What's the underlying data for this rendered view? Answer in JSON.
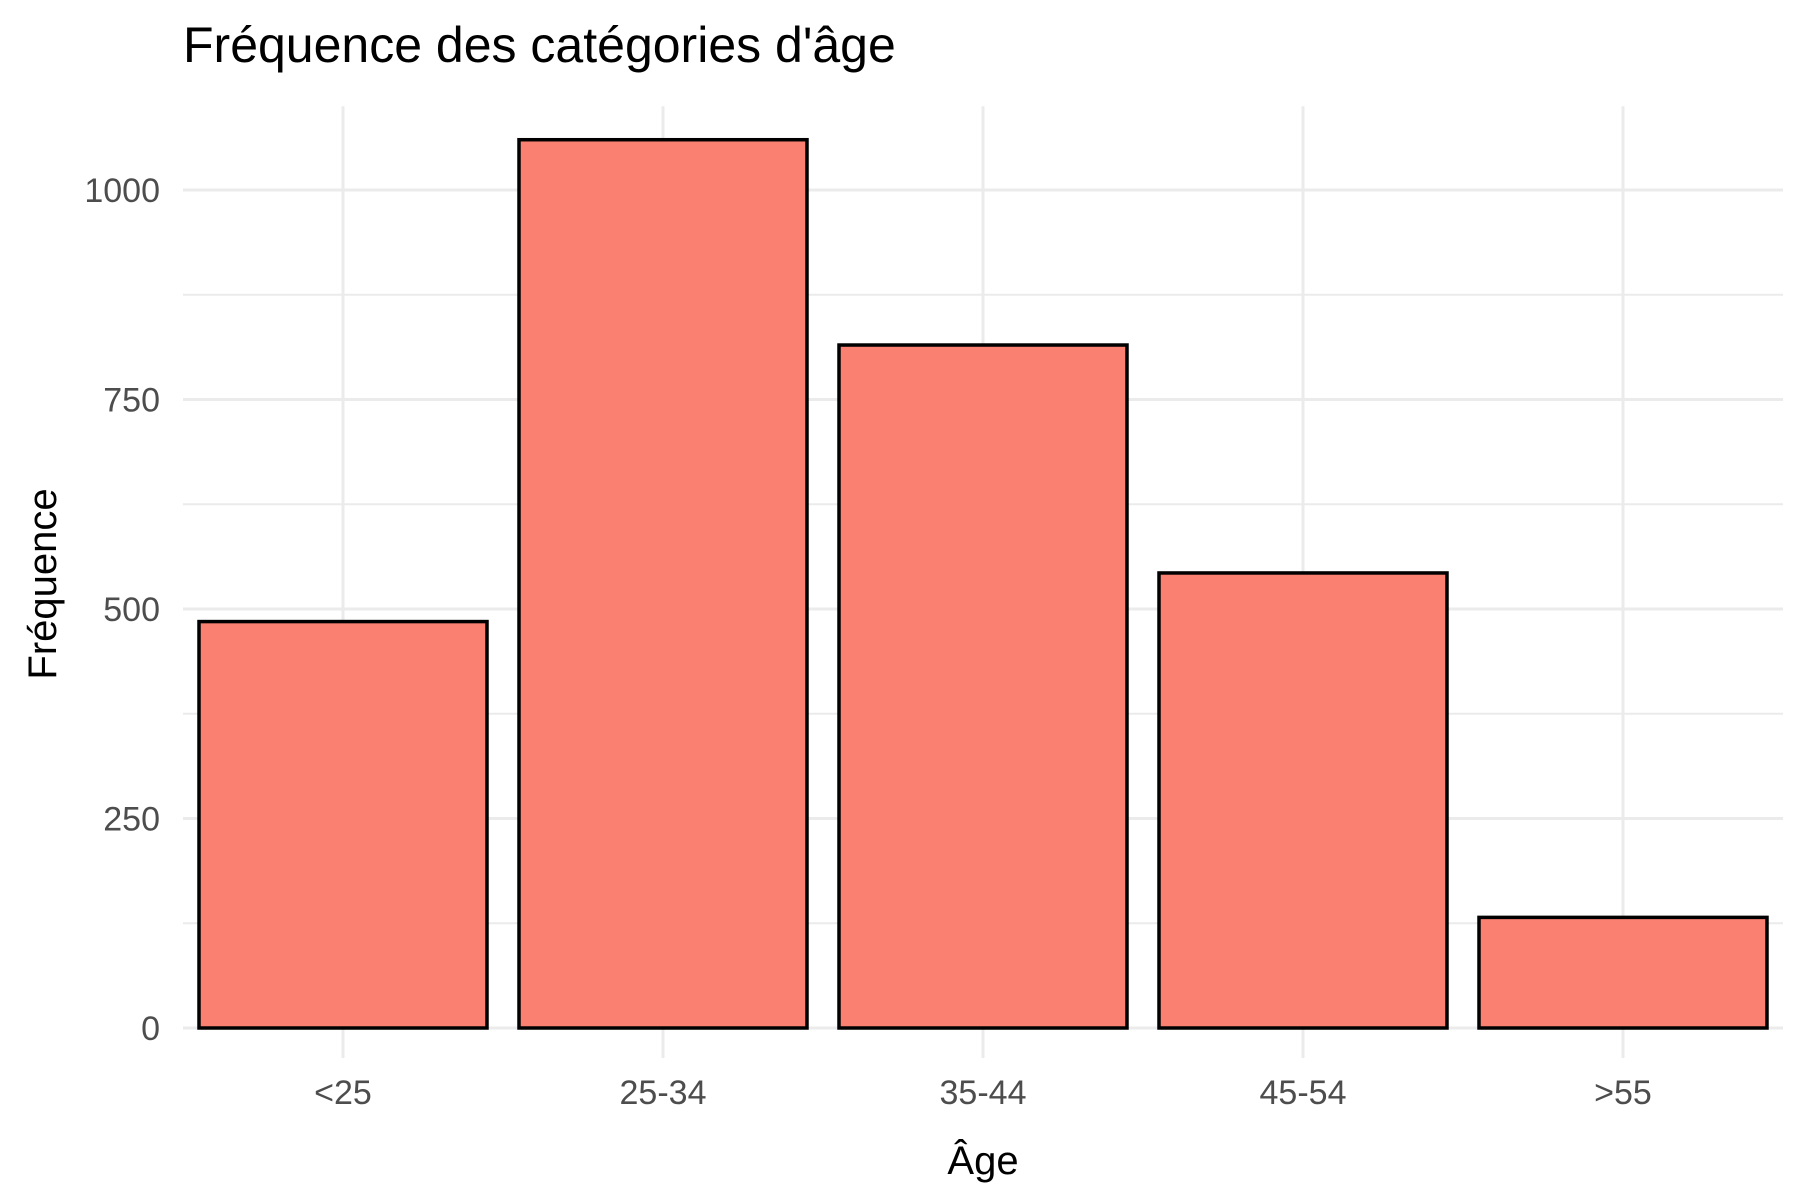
{
  "chart_data": {
    "type": "bar",
    "title": "Fréquence des catégories d'âge",
    "xlabel": "Âge",
    "ylabel": "Fréquence",
    "categories": [
      "<25",
      "25-34",
      "35-44",
      "45-54",
      ">55"
    ],
    "values": [
      485,
      1060,
      815,
      543,
      132
    ],
    "ylim": [
      0,
      1100
    ],
    "yticks": [
      0,
      250,
      500,
      750,
      1000
    ],
    "ytick_labels": [
      "0",
      "250",
      "500",
      "750",
      "1000"
    ],
    "grid": true,
    "legend": "none",
    "bar_color": "#FA8072",
    "bar_outline": "#000000"
  }
}
